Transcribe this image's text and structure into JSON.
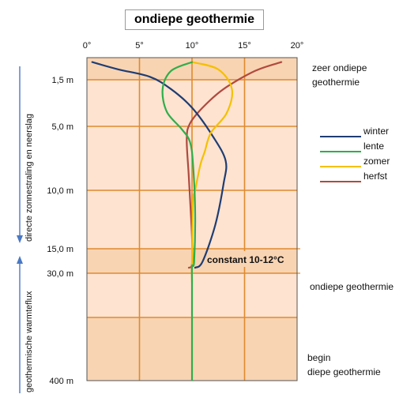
{
  "title": "ondiepe geothermie",
  "chart_data": {
    "type": "line",
    "x_ticks": [
      "0°",
      "5°",
      "10°",
      "15°",
      "20°"
    ],
    "xlim": [
      0,
      20
    ],
    "y_ticks": [
      {
        "label": "1,5 m",
        "depth": 1.5
      },
      {
        "label": "5,0 m",
        "depth": 5.0
      },
      {
        "label": "10,0 m",
        "depth": 10.0
      },
      {
        "label": "15,0 m",
        "depth": 15.0
      },
      {
        "label": "30,0 m",
        "depth": 30.0
      },
      {
        "label": "400 m",
        "depth": 400
      }
    ],
    "y_scale": "non-linear (depth, increasing downward)",
    "grid": true,
    "legend_position": "right",
    "bands": [
      {
        "label": "zeer ondiepe geothermie"
      },
      {
        "label": "constant 10-12°C"
      },
      {
        "label": "ondiepe geothermie"
      },
      {
        "label": "begin diepe geothermie"
      }
    ],
    "left_annotations": [
      {
        "label": "directe zonnestraling en neerslag",
        "arrow": "down"
      },
      {
        "label": "geothermische warmteflux",
        "arrow": "up"
      }
    ],
    "series": [
      {
        "name": "winter",
        "color": "#1f3d73",
        "points": [
          [
            0.5,
            0.3
          ],
          [
            3,
            0.8
          ],
          [
            6,
            1.3
          ],
          [
            8,
            2.2
          ],
          [
            10,
            3.6
          ],
          [
            12,
            5.8
          ],
          [
            13.2,
            7.7
          ],
          [
            13,
            9.5
          ],
          [
            12.2,
            13
          ],
          [
            11,
            18
          ],
          [
            10.3,
            23.5
          ]
        ]
      },
      {
        "name": "lente",
        "color": "#2fae4a",
        "points": [
          [
            10,
            0.3
          ],
          [
            8,
            0.9
          ],
          [
            7.2,
            2.2
          ],
          [
            7.6,
            3.9
          ],
          [
            9,
            5.2
          ],
          [
            9.8,
            6.2
          ],
          [
            10.1,
            8
          ],
          [
            10.3,
            12
          ],
          [
            10.2,
            18
          ],
          [
            10,
            22
          ],
          [
            10,
            34
          ]
        ]
      },
      {
        "name": "zomer",
        "color": "#f5c000",
        "points": [
          [
            10,
            0.3
          ],
          [
            12.5,
            0.8
          ],
          [
            13.8,
            2.2
          ],
          [
            13.3,
            4.0
          ],
          [
            11.8,
            5.5
          ],
          [
            11.2,
            7.0
          ],
          [
            10.8,
            8
          ],
          [
            10.3,
            10
          ],
          [
            10.1,
            11
          ],
          [
            10,
            17
          ],
          [
            10,
            34
          ]
        ]
      },
      {
        "name": "herfst",
        "color": "#b04a3f",
        "points": [
          [
            18.5,
            0.3
          ],
          [
            16,
            0.9
          ],
          [
            13,
            2.2
          ],
          [
            11,
            3.6
          ],
          [
            9.8,
            4.8
          ],
          [
            9.5,
            6.0
          ],
          [
            9.7,
            9
          ],
          [
            10,
            14
          ],
          [
            10,
            20
          ],
          [
            9.7,
            23.5
          ]
        ]
      }
    ]
  }
}
